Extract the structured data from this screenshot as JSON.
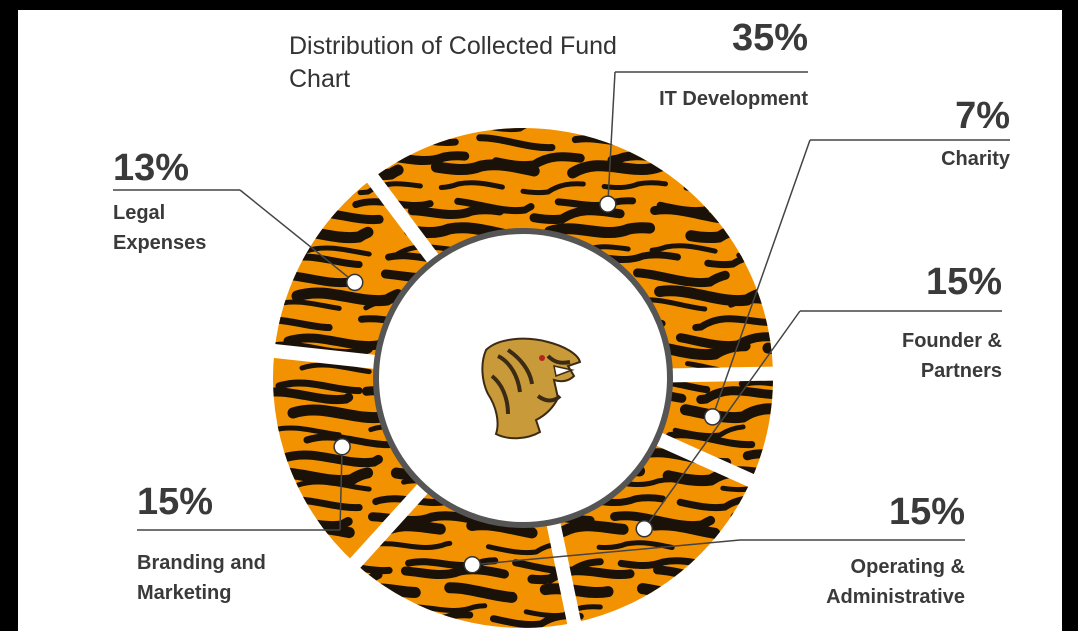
{
  "chart_data": {
    "type": "pie",
    "title": "Distribution of Collected Fund Chart",
    "categories": [
      "IT Development",
      "Charity",
      "Founder & Partners",
      "Operating & Administrative",
      "Branding and Marketing",
      "Legal Expenses"
    ],
    "values": [
      35,
      7,
      15,
      15,
      15,
      13
    ],
    "value_labels": [
      "35%",
      "7%",
      "15%",
      "15%",
      "15%",
      "13%"
    ],
    "color": "#f39200"
  }
}
